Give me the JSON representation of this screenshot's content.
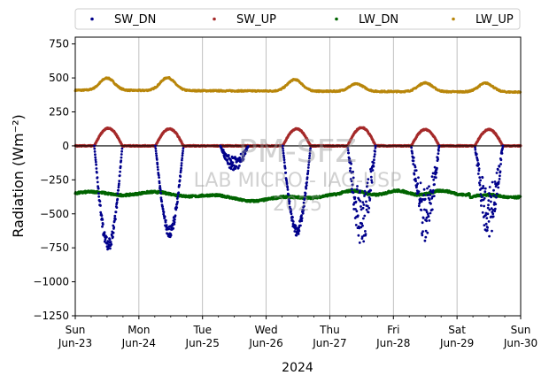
{
  "chart_data": {
    "type": "scatter",
    "ylabel": "Radiation (Wm⁻²)",
    "xlabel": "2024",
    "ylim": [
      -1250,
      800
    ],
    "yticks": [
      750,
      500,
      250,
      0,
      -250,
      -500,
      -750,
      -1000,
      -1250
    ],
    "xlim_days": [
      0,
      7
    ],
    "xticks": [
      {
        "day": "Sun",
        "date": "Jun-23"
      },
      {
        "day": "Mon",
        "date": "Jun-24"
      },
      {
        "day": "Tue",
        "date": "Jun-25"
      },
      {
        "day": "Wed",
        "date": "Jun-26"
      },
      {
        "day": "Thu",
        "date": "Jun-27"
      },
      {
        "day": "Fri",
        "date": "Jun-28"
      },
      {
        "day": "Sat",
        "date": "Jun-29"
      },
      {
        "day": "Sun",
        "date": "Jun-30"
      }
    ],
    "grid_x": true,
    "zero_line": true,
    "legend_placement": "top, above plot, 4 columns",
    "watermark": {
      "line1": "PM-SFZ",
      "line2": "LAB MICRO - IAG-USP",
      "line3": "2025"
    },
    "series": [
      {
        "name": "SW_DN",
        "color": "#00008b",
        "daily_minimum": [
          -760,
          -660,
          null,
          -650,
          -700,
          -670,
          -640
        ],
        "note_days": "Jun-23..Jun-29"
      },
      {
        "name": "SW_UP",
        "color": "#a52a2a",
        "daily_maximum": [
          130,
          125,
          null,
          125,
          135,
          120,
          120
        ]
      },
      {
        "name": "LW_DN",
        "color": "#006400",
        "level_range": [
          -410,
          -330
        ]
      },
      {
        "name": "LW_UP",
        "color": "#b8860b",
        "level_range": [
          395,
          495
        ]
      }
    ]
  }
}
